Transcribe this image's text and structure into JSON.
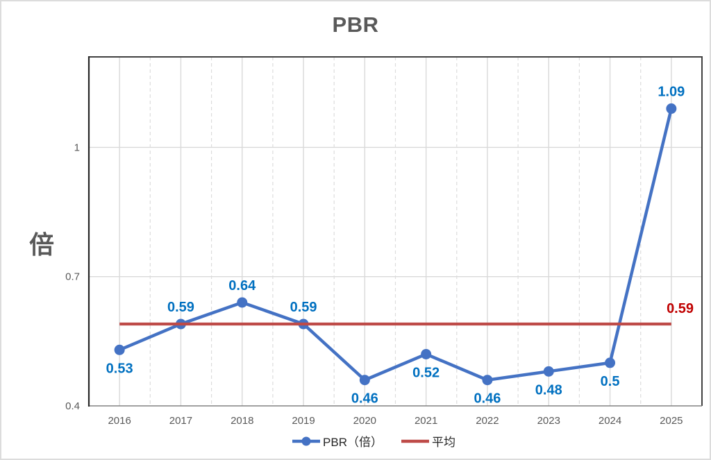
{
  "chart_data": {
    "type": "line",
    "title": "PBR",
    "y_axis_title": "倍",
    "categories": [
      "2016",
      "2017",
      "2018",
      "2019",
      "2020",
      "2021",
      "2022",
      "2023",
      "2024",
      "2025"
    ],
    "series": [
      {
        "name": "PBR（倍）",
        "values": [
          0.53,
          0.59,
          0.64,
          0.59,
          0.46,
          0.52,
          0.46,
          0.48,
          0.5,
          1.09
        ],
        "labels": [
          "0.53",
          "0.59",
          "0.64",
          "0.59",
          "0.46",
          "0.52",
          "0.46",
          "0.48",
          "0.5",
          "1.09"
        ],
        "label_positions": [
          "below",
          "above",
          "above",
          "above",
          "below",
          "below",
          "below",
          "below",
          "below",
          "above"
        ],
        "color": "#4472C4",
        "label_color": "#0070C0"
      },
      {
        "name": "平均",
        "type": "constant-line",
        "value": 0.59,
        "label": "0.59",
        "color": "#BE4B48",
        "label_color": "#C00000"
      }
    ],
    "ylim": [
      0.4,
      1.21
    ],
    "yticks": [
      "0.4",
      "0.7",
      "1"
    ],
    "ytick_values": [
      0.4,
      0.7,
      1.0
    ],
    "grid": {
      "h_major": true,
      "v_major_solid": true,
      "v_minor_dashed": true
    },
    "legend_position": "bottom"
  },
  "colors": {
    "grid": "#D9D9D9",
    "grid_dashed": "#DCDCDC",
    "border": "#404040",
    "y_axis": "#262626",
    "x_axis": "#808080",
    "tick_text": "#595959"
  }
}
